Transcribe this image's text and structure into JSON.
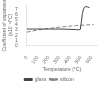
{
  "chart_data": {
    "type": "line",
    "xlabel": "Temperature (°C)",
    "ylabel": "Coefficient of expansion\n(x10⁻⁶/°C)",
    "xlim": [
      0,
      650
    ],
    "xticks": [
      0,
      100,
      200,
      300,
      400,
      500,
      600
    ],
    "ylim": [
      0,
      8
    ],
    "yticks": [
      0,
      1,
      2,
      3,
      4,
      5,
      6,
      7
    ],
    "grid": false,
    "legend": "bottom",
    "series": [
      {
        "name": "glass",
        "color": "#444444",
        "line_style": "solid",
        "x": [
          0,
          50,
          100,
          200,
          300,
          400,
          450,
          480,
          495,
          505,
          515,
          525,
          535,
          545,
          560,
          580
        ],
        "values": [
          3.2,
          3.2,
          3.2,
          3.2,
          3.2,
          3.15,
          3.1,
          3.05,
          3.1,
          4.5,
          6.2,
          7.0,
          7.4,
          7.5,
          7.45,
          7.3
        ]
      },
      {
        "name": "silicon",
        "color": "#888888",
        "line_style": "dashed",
        "x": [
          0,
          50,
          100,
          150,
          200,
          250,
          300,
          350,
          400,
          450,
          500,
          550,
          620
        ],
        "values": [
          2.6,
          2.8,
          3.0,
          3.15,
          3.3,
          3.45,
          3.55,
          3.65,
          3.75,
          3.85,
          3.92,
          3.98,
          4.05
        ]
      }
    ]
  }
}
